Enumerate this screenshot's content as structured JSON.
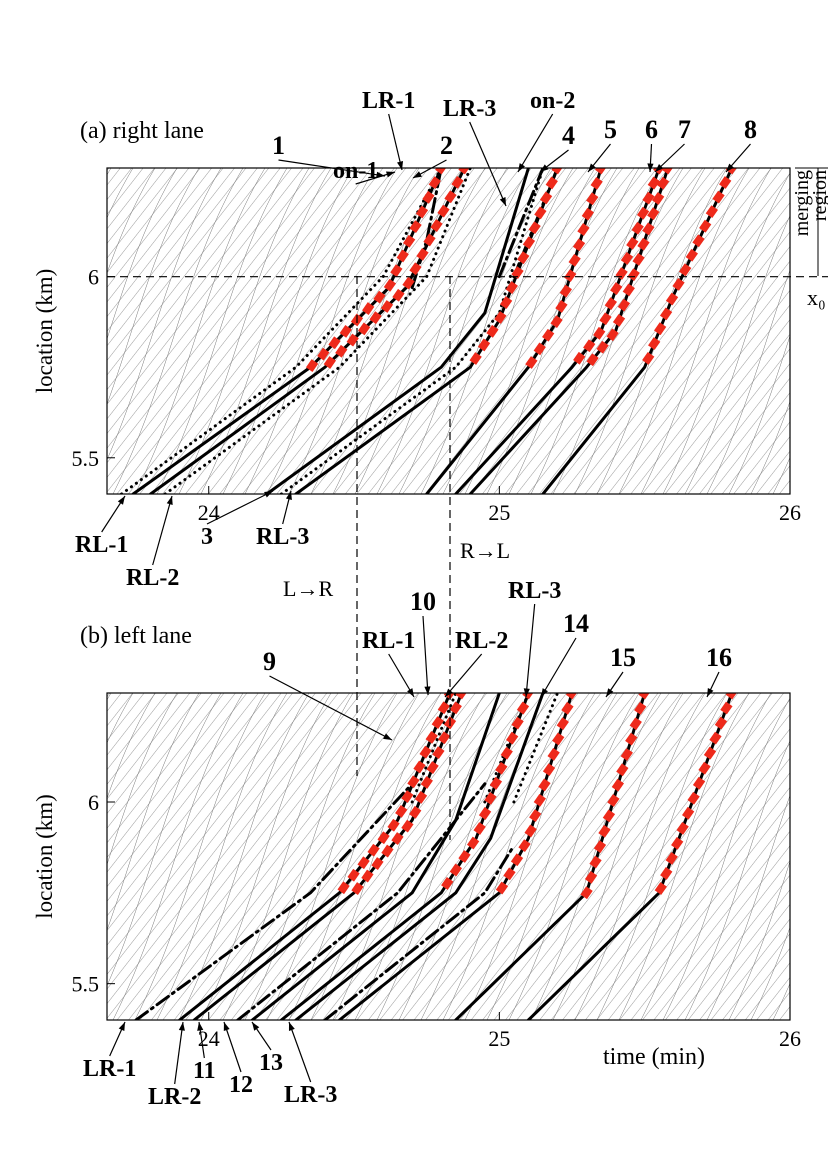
{
  "chart_data": [
    {
      "type": "line",
      "panel": "(a) right lane",
      "title": "(a) right lane",
      "ylabel": "location (km)",
      "xlabel": "",
      "xlim": [
        23.65,
        26
      ],
      "ylim": [
        5.4,
        6.3
      ],
      "xticks": [
        "24",
        "25",
        "26"
      ],
      "yticks": [
        "5.5",
        "6"
      ],
      "merge_line_km": 6.0,
      "side_labels": {
        "merging": "merging",
        "region": "region",
        "x0": "x₀"
      },
      "series": [
        {
          "name": "RL-1",
          "style": "dotted",
          "points": [
            [
              23.7,
              5.4
            ],
            [
              24.3,
              5.75
            ],
            [
              24.6,
              6.0
            ],
            [
              24.8,
              6.3
            ]
          ]
        },
        {
          "name": "RL-2",
          "style": "dotted",
          "points": [
            [
              23.85,
              5.4
            ],
            [
              24.45,
              5.75
            ],
            [
              24.75,
              6.0
            ],
            [
              24.9,
              6.3
            ]
          ]
        },
        {
          "name": "1",
          "style": "solid",
          "marked": true,
          "points": [
            [
              23.74,
              5.4
            ],
            [
              24.35,
              5.75
            ],
            [
              24.62,
              5.97
            ],
            [
              24.8,
              6.3
            ]
          ]
        },
        {
          "name": "on-1",
          "style": "dashdot",
          "points": [
            [
              24.7,
              5.97
            ],
            [
              24.75,
              6.1
            ],
            [
              24.8,
              6.3
            ]
          ]
        },
        {
          "name": "2",
          "style": "solid",
          "marked": true,
          "points": [
            [
              23.8,
              5.4
            ],
            [
              24.4,
              5.75
            ],
            [
              24.68,
              5.97
            ],
            [
              24.88,
              6.3
            ]
          ]
        },
        {
          "name": "3",
          "style": "solid",
          "points": [
            [
              24.2,
              5.4
            ],
            [
              24.8,
              5.75
            ],
            [
              24.95,
              5.9
            ],
            [
              25.1,
              6.3
            ]
          ]
        },
        {
          "name": "RL-3",
          "style": "dotted",
          "points": [
            [
              24.25,
              5.4
            ],
            [
              24.85,
              5.75
            ],
            [
              25.0,
              5.9
            ],
            [
              25.15,
              6.3
            ]
          ]
        },
        {
          "name": "LR-3",
          "style": "dashdot",
          "points": [
            [
              25.0,
              6.0
            ],
            [
              25.1,
              6.2
            ],
            [
              25.15,
              6.3
            ]
          ]
        },
        {
          "name": "on-2",
          "style": "dashdot",
          "points": [
            [
              25.05,
              6.0
            ],
            [
              25.15,
              6.2
            ],
            [
              25.2,
              6.3
            ]
          ]
        },
        {
          "name": "4",
          "style": "solid",
          "marked": true,
          "points": [
            [
              24.3,
              5.4
            ],
            [
              24.9,
              5.75
            ],
            [
              25.0,
              5.88
            ],
            [
              25.2,
              6.3
            ]
          ]
        },
        {
          "name": "5",
          "style": "solid",
          "marked": true,
          "points": [
            [
              24.75,
              5.4
            ],
            [
              25.1,
              5.75
            ],
            [
              25.2,
              5.88
            ],
            [
              25.35,
              6.3
            ]
          ]
        },
        {
          "name": "6",
          "style": "solid",
          "marked": true,
          "points": [
            [
              24.85,
              5.4
            ],
            [
              25.25,
              5.75
            ],
            [
              25.35,
              5.85
            ],
            [
              25.55,
              6.3
            ]
          ]
        },
        {
          "name": "7",
          "style": "solid",
          "marked": true,
          "points": [
            [
              24.9,
              5.4
            ],
            [
              25.3,
              5.75
            ],
            [
              25.4,
              5.85
            ],
            [
              25.58,
              6.3
            ]
          ]
        },
        {
          "name": "8",
          "style": "solid",
          "marked": true,
          "points": [
            [
              25.15,
              5.4
            ],
            [
              25.5,
              5.75
            ],
            [
              25.6,
              5.95
            ],
            [
              25.8,
              6.3
            ]
          ]
        }
      ],
      "annotations": [
        "1",
        "on-1",
        "LR-1",
        "2",
        "LR-3",
        "on-2",
        "4",
        "5",
        "6",
        "7",
        "8",
        "RL-1",
        "RL-2",
        "3",
        "RL-3"
      ]
    },
    {
      "type": "line",
      "panel": "(b) left lane",
      "title": "(b) left lane",
      "ylabel": "location (km)",
      "xlabel": "time (min)",
      "xlim": [
        23.65,
        26
      ],
      "ylim": [
        5.4,
        6.3
      ],
      "xticks": [
        "24",
        "25",
        "26"
      ],
      "yticks": [
        "5.5",
        "6"
      ],
      "series": [
        {
          "name": "LR-1",
          "style": "dashdot",
          "points": [
            [
              23.75,
              5.4
            ],
            [
              24.35,
              5.75
            ],
            [
              24.7,
              6.05
            ]
          ]
        },
        {
          "name": "9",
          "style": "solid",
          "marked": true,
          "points": [
            [
              23.9,
              5.4
            ],
            [
              24.45,
              5.75
            ],
            [
              24.65,
              5.95
            ],
            [
              24.83,
              6.3
            ]
          ]
        },
        {
          "name": "RL-1",
          "style": "dotted",
          "points": [
            [
              24.7,
              6.0
            ],
            [
              24.8,
              6.2
            ],
            [
              24.85,
              6.3
            ]
          ]
        },
        {
          "name": "10",
          "style": "solid",
          "marked": true,
          "points": [
            [
              23.95,
              5.4
            ],
            [
              24.5,
              5.75
            ],
            [
              24.7,
              5.95
            ],
            [
              24.87,
              6.3
            ]
          ]
        },
        {
          "name": "LR-2",
          "style": "dashdot",
          "points": [
            [
              24.1,
              5.4
            ],
            [
              24.65,
              5.75
            ],
            [
              24.95,
              6.05
            ]
          ]
        },
        {
          "name": "11",
          "style": "solid",
          "points": [
            [
              24.15,
              5.4
            ],
            [
              24.7,
              5.75
            ],
            [
              24.85,
              5.95
            ],
            [
              25.0,
              6.3
            ]
          ]
        },
        {
          "name": "RL-2",
          "style": "dotted",
          "points": [
            [
              24.95,
              6.0
            ],
            [
              25.05,
              6.2
            ],
            [
              25.1,
              6.3
            ]
          ]
        },
        {
          "name": "12",
          "style": "solid",
          "marked": true,
          "points": [
            [
              24.25,
              5.4
            ],
            [
              24.8,
              5.75
            ],
            [
              24.92,
              5.9
            ],
            [
              25.1,
              6.3
            ]
          ]
        },
        {
          "name": "13",
          "style": "solid",
          "points": [
            [
              24.3,
              5.4
            ],
            [
              24.85,
              5.75
            ],
            [
              24.97,
              5.9
            ],
            [
              25.15,
              6.3
            ]
          ]
        },
        {
          "name": "LR-3",
          "style": "dashdot",
          "points": [
            [
              24.4,
              5.4
            ],
            [
              24.95,
              5.75
            ],
            [
              25.05,
              5.88
            ]
          ]
        },
        {
          "name": "RL-3",
          "style": "dotted",
          "points": [
            [
              25.05,
              6.0
            ],
            [
              25.15,
              6.2
            ],
            [
              25.2,
              6.3
            ]
          ]
        },
        {
          "name": "14",
          "style": "solid",
          "marked": true,
          "points": [
            [
              24.45,
              5.4
            ],
            [
              25.0,
              5.75
            ],
            [
              25.1,
              5.9
            ],
            [
              25.25,
              6.3
            ]
          ]
        },
        {
          "name": "15",
          "style": "solid",
          "marked": true,
          "points": [
            [
              24.85,
              5.4
            ],
            [
              25.3,
              5.75
            ],
            [
              25.5,
              6.3
            ]
          ]
        },
        {
          "name": "16",
          "style": "solid",
          "marked": true,
          "points": [
            [
              25.1,
              5.4
            ],
            [
              25.55,
              5.75
            ],
            [
              25.8,
              6.3
            ]
          ]
        }
      ],
      "annotations": [
        "9",
        "RL-1",
        "10",
        "RL-2",
        "RL-3",
        "14",
        "15",
        "16",
        "LR-1",
        "LR-2",
        "11",
        "12",
        "13",
        "LR-3"
      ]
    }
  ],
  "transitions": {
    "left_to_right": "L→R",
    "right_to_left": "R→L"
  }
}
